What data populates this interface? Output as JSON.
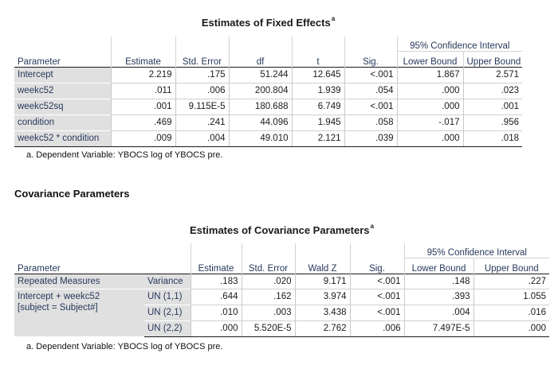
{
  "fixed": {
    "title": "Estimates of Fixed Effects",
    "title_sup": "a",
    "ci_header": "95% Confidence Interval",
    "headers": [
      "Parameter",
      "Estimate",
      "Std. Error",
      "df",
      "t",
      "Sig.",
      "Lower Bound",
      "Upper Bound"
    ],
    "rows": [
      [
        "Intercept",
        "2.219",
        ".175",
        "51.244",
        "12.645",
        "<.001",
        "1.867",
        "2.571"
      ],
      [
        "weekc52",
        ".011",
        ".006",
        "200.804",
        "1.939",
        ".054",
        ".000",
        ".023"
      ],
      [
        "weekc52sq",
        ".001",
        "9.115E-5",
        "180.688",
        "6.749",
        "<.001",
        ".000",
        ".001"
      ],
      [
        "condition",
        ".469",
        ".241",
        "44.096",
        "1.945",
        ".058",
        "-.017",
        ".956"
      ],
      [
        "weekc52 * condition",
        ".009",
        ".004",
        "49.010",
        "2.121",
        ".039",
        ".000",
        ".018"
      ]
    ],
    "footnote": "a. Dependent Variable: YBOCS log of YBOCS pre."
  },
  "section_title": "Covariance Parameters",
  "covariance": {
    "title": "Estimates of Covariance Parameters",
    "title_sup": "a",
    "ci_header": "95% Confidence Interval",
    "headers": [
      "Parameter",
      "Estimate",
      "Std. Error",
      "Wald Z",
      "Sig.",
      "Lower Bound",
      "Upper Bound"
    ],
    "group1": "Repeated Measures",
    "group2_line1": "Intercept + weekc52",
    "group2_line2": "[subject = Subject#]",
    "rows": [
      [
        "Variance",
        ".183",
        ".020",
        "9.171",
        "<.001",
        ".148",
        ".227"
      ],
      [
        "UN (1,1)",
        ".644",
        ".162",
        "3.974",
        "<.001",
        ".393",
        "1.055"
      ],
      [
        "UN (2,1)",
        ".010",
        ".003",
        "3.438",
        "<.001",
        ".004",
        ".016"
      ],
      [
        "UN (2,2)",
        ".000",
        "5.520E-5",
        "2.762",
        ".006",
        "7.497E-5",
        ".000"
      ]
    ],
    "footnote": "a. Dependent Variable: YBOCS log of YBOCS pre."
  }
}
